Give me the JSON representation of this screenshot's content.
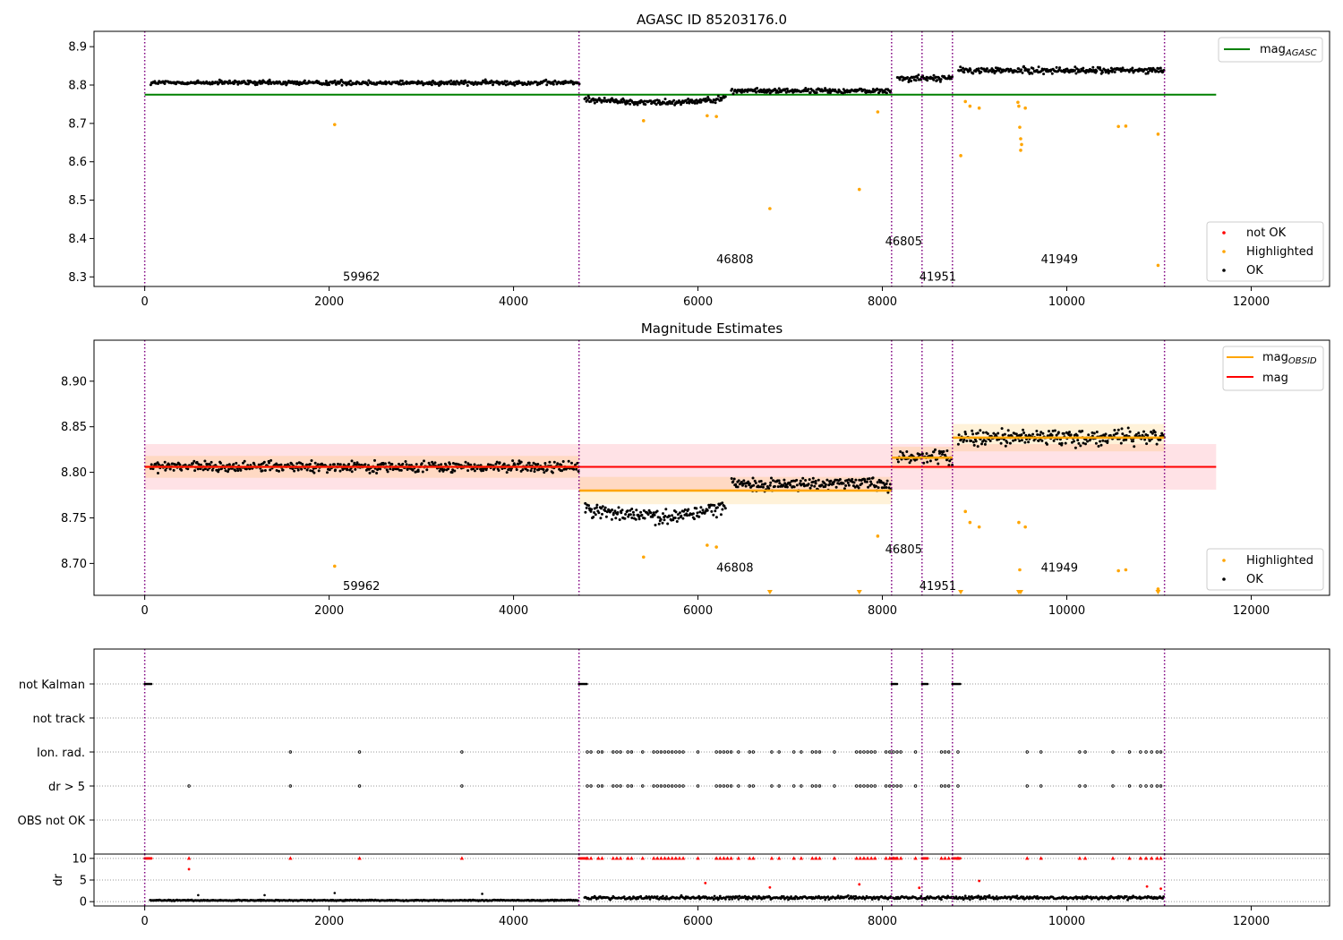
{
  "chart_data": [
    {
      "type": "scatter",
      "title": "AGASC ID 85203176.0",
      "xlim": [
        -550,
        12850
      ],
      "ylim": [
        8.275,
        8.94
      ],
      "xticks": [
        0,
        2000,
        4000,
        6000,
        8000,
        10000,
        12000
      ],
      "xtick_labels": [
        "0",
        "2000",
        "4000",
        "6000",
        "8000",
        "10000",
        "12000"
      ],
      "yticks": [
        8.3,
        8.4,
        8.5,
        8.6,
        8.7,
        8.8,
        8.9
      ],
      "ytick_labels": [
        "8.3",
        "8.4",
        "8.5",
        "8.6",
        "8.7",
        "8.8",
        "8.9"
      ],
      "obsid_boundaries": [
        0,
        4710,
        8100,
        8430,
        8760,
        11060
      ],
      "obsid_labels": [
        {
          "text": "59962",
          "x": 2150,
          "y": 8.3
        },
        {
          "text": "46808",
          "x": 6200,
          "y": 8.345
        },
        {
          "text": "46805",
          "x": 8030,
          "y": 8.392
        },
        {
          "text": "41951",
          "x": 8400,
          "y": 8.3
        },
        {
          "text": "41949",
          "x": 9720,
          "y": 8.345
        }
      ],
      "hlines": [
        {
          "name": "mag_AGASC",
          "y": 8.775,
          "x0": 0,
          "x1": 11620,
          "color": "#008000"
        }
      ],
      "trend_segments": [
        {
          "x0": 0,
          "x1": 4710,
          "y": 8.806,
          "spread": 0.009
        },
        {
          "x0": 4710,
          "x1": 6300,
          "y": 8.765,
          "spread": 0.011
        },
        {
          "x0": 6300,
          "x1": 8100,
          "y": 8.785,
          "spread": 0.009
        },
        {
          "x0": 8100,
          "x1": 8760,
          "y": 8.818,
          "spread": 0.012
        },
        {
          "x0": 8760,
          "x1": 11060,
          "y": 8.838,
          "spread": 0.012
        }
      ],
      "highlighted_outliers": [
        [
          2060,
          8.697
        ],
        [
          5410,
          8.707
        ],
        [
          6100,
          8.72
        ],
        [
          6200,
          8.718
        ],
        [
          6780,
          8.478
        ],
        [
          7750,
          8.528
        ],
        [
          7950,
          8.73
        ],
        [
          8850,
          8.616
        ],
        [
          8900,
          8.757
        ],
        [
          8950,
          8.745
        ],
        [
          9050,
          8.74
        ],
        [
          9470,
          8.755
        ],
        [
          9480,
          8.745
        ],
        [
          9490,
          8.69
        ],
        [
          9500,
          8.66
        ],
        [
          9500,
          8.63
        ],
        [
          9510,
          8.645
        ],
        [
          9550,
          8.74
        ],
        [
          10560,
          8.692
        ],
        [
          10640,
          8.693
        ],
        [
          10990,
          8.672
        ],
        [
          10990,
          8.33
        ]
      ],
      "legend": {
        "location": "top-right",
        "entries": [
          {
            "label": "mag",
            "subscript": "AGASC",
            "color": "#008000"
          }
        ]
      },
      "legend2": {
        "location": "bottom-right",
        "entries": [
          {
            "label": "not OK",
            "color": "#ff0000"
          },
          {
            "label": "Highlighted",
            "color": "#ffa500"
          },
          {
            "label": "OK",
            "color": "#000000"
          }
        ]
      }
    },
    {
      "type": "scatter",
      "title": "Magnitude Estimates",
      "xlim": [
        -550,
        12850
      ],
      "ylim": [
        8.665,
        8.945
      ],
      "xticks": [
        0,
        2000,
        4000,
        6000,
        8000,
        10000,
        12000
      ],
      "xtick_labels": [
        "0",
        "2000",
        "4000",
        "6000",
        "8000",
        "10000",
        "12000"
      ],
      "yticks": [
        8.7,
        8.75,
        8.8,
        8.85,
        8.9
      ],
      "ytick_labels": [
        "8.70",
        "8.75",
        "8.80",
        "8.85",
        "8.90"
      ],
      "obsid_boundaries": [
        0,
        4710,
        8100,
        8430,
        8760,
        11060
      ],
      "obsid_labels": [
        {
          "text": "59962",
          "x": 2150,
          "y": 8.675
        },
        {
          "text": "46808",
          "x": 6200,
          "y": 8.695
        },
        {
          "text": "46805",
          "x": 8030,
          "y": 8.715
        },
        {
          "text": "41951",
          "x": 8400,
          "y": 8.675
        },
        {
          "text": "41949",
          "x": 9720,
          "y": 8.695
        }
      ],
      "mag_band": {
        "y0": 8.781,
        "y1": 8.831,
        "x0": 0,
        "x1": 11620,
        "color": "#ffb6c1"
      },
      "hlines": [
        {
          "name": "mag",
          "y": 8.806,
          "x0": 0,
          "x1": 11620,
          "color": "#ff0000"
        }
      ],
      "obsid_mags": [
        {
          "x0": 0,
          "x1": 4710,
          "y": 8.806,
          "band": 0.012
        },
        {
          "x0": 4710,
          "x1": 8100,
          "y": 8.78,
          "band": 0.015
        },
        {
          "x0": 8100,
          "x1": 8760,
          "y": 8.816,
          "band": 0.012
        },
        {
          "x0": 8760,
          "x1": 11060,
          "y": 8.838,
          "band": 0.015
        }
      ],
      "trend_segments": [
        {
          "x0": 0,
          "x1": 4710,
          "y": 8.806,
          "spread": 0.009
        },
        {
          "x0": 4710,
          "x1": 6300,
          "y": 8.762,
          "spread": 0.012
        },
        {
          "x0": 6300,
          "x1": 8100,
          "y": 8.787,
          "spread": 0.01
        },
        {
          "x0": 8100,
          "x1": 8760,
          "y": 8.818,
          "spread": 0.013
        },
        {
          "x0": 8760,
          "x1": 11060,
          "y": 8.838,
          "spread": 0.013
        }
      ],
      "highlighted_outliers": [
        [
          2060,
          8.697
        ],
        [
          5410,
          8.707
        ],
        [
          6100,
          8.72
        ],
        [
          6200,
          8.718
        ],
        [
          7950,
          8.73
        ],
        [
          8900,
          8.757
        ],
        [
          8950,
          8.745
        ],
        [
          9050,
          8.74
        ],
        [
          9480,
          8.745
        ],
        [
          9490,
          8.693
        ],
        [
          9550,
          8.74
        ],
        [
          10560,
          8.692
        ],
        [
          10640,
          8.693
        ],
        [
          10990,
          8.672
        ],
        [
          10990,
          8.67
        ]
      ],
      "below_range_markers": [
        6780,
        7750,
        8850,
        9480,
        9500,
        10990
      ],
      "legend": {
        "location": "top-right",
        "entries": [
          {
            "label": "mag",
            "subscript": "OBSID",
            "color": "#ffa500"
          },
          {
            "label": "mag",
            "subscript": "",
            "color": "#ff0000"
          }
        ]
      },
      "legend2": {
        "location": "bottom-right",
        "entries": [
          {
            "label": "Highlighted",
            "color": "#ffa500"
          },
          {
            "label": "OK",
            "color": "#000000"
          }
        ]
      }
    },
    {
      "type": "scatter",
      "title": "",
      "xlim": [
        -550,
        12850
      ],
      "xticks": [
        0,
        2000,
        4000,
        6000,
        8000,
        10000,
        12000
      ],
      "xtick_labels": [
        "0",
        "2000",
        "4000",
        "6000",
        "8000",
        "10000",
        "12000"
      ],
      "flag_rows": [
        "not Kalman",
        "not track",
        "Ion. rad.",
        "dr > 5",
        "OBS not OK"
      ],
      "obsid_boundaries": [
        0,
        4710,
        8100,
        8430,
        8760,
        11060
      ],
      "flag_points": {
        "not Kalman": [
          [
            0,
            80
          ],
          [
            4710,
            4800
          ],
          [
            8100,
            8170
          ],
          [
            8430,
            8500
          ],
          [
            8760,
            8850
          ]
        ],
        "ion_rad_sparse": [
          1580,
          2330,
          3440,
          9570,
          11020
        ],
        "dr5_sparse": [
          480,
          1580,
          2330,
          3440,
          9570,
          11020
        ],
        "dense_range": [
          4760,
          8760
        ]
      },
      "dr_panel": {
        "ylabel": "dr",
        "ylim": [
          -1,
          11
        ],
        "yticks": [
          0,
          5,
          10
        ],
        "ytick_labels": [
          "0",
          "5",
          "10"
        ],
        "clipped_value": 10,
        "scattered_red": [
          [
            480,
            7.5
          ],
          [
            6080,
            4.3
          ],
          [
            6780,
            3.3
          ],
          [
            7750,
            4
          ],
          [
            8400,
            3.2
          ],
          [
            9050,
            4.8
          ],
          [
            10870,
            3.5
          ],
          [
            11020,
            3
          ]
        ],
        "scattered_black": [
          [
            580,
            1.5
          ],
          [
            1300,
            1.5
          ],
          [
            2060,
            2
          ],
          [
            3660,
            1.8
          ]
        ],
        "baseline": [
          {
            "x0": 0,
            "x1": 4710,
            "level": 0.3
          },
          {
            "x0": 4710,
            "x1": 11060,
            "level": 0.9
          }
        ]
      }
    }
  ]
}
